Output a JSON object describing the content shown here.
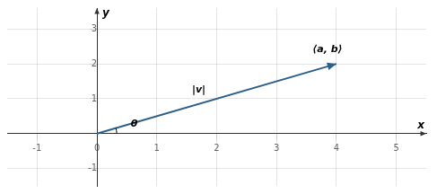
{
  "chart_data": {
    "type": "line",
    "x": [
      0,
      4
    ],
    "values": [
      0,
      2
    ],
    "color": "#2e5f8a",
    "xlabel": "x",
    "ylabel": "y",
    "xlim": [
      -1.5,
      5.5
    ],
    "ylim": [
      -1.5,
      3.6
    ],
    "xticks": [
      -1,
      0,
      1,
      2,
      3,
      4,
      5
    ],
    "yticks": [
      -1,
      1,
      2,
      3
    ],
    "grid": true,
    "annotations": [
      {
        "text": "|v|",
        "x": 1.7,
        "y": 1.1
      },
      {
        "text": "⟨a, b⟩",
        "x": 3.85,
        "y": 2.28
      },
      {
        "text": "θ",
        "x": 0.62,
        "y": 0.14
      }
    ]
  }
}
